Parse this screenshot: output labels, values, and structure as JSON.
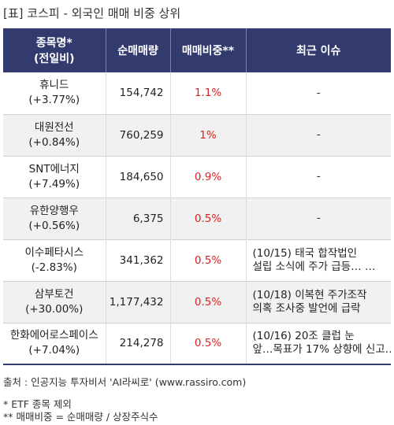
{
  "title": "[표] 코스피 - 외국인 매매 비중 상위",
  "headers": {
    "name_line1": "종목명*",
    "name_line2": "(전일비)",
    "amount": "순매매량",
    "ratio": "매매비중**",
    "issue": "최근 이슈"
  },
  "rows": [
    {
      "name": "휴니드",
      "change": "(+3.77%)",
      "amount": "154,742",
      "ratio": "1.1%",
      "issue": [
        "-"
      ]
    },
    {
      "name": "대원전선",
      "change": "(+0.84%)",
      "amount": "760,259",
      "ratio": "1%",
      "issue": [
        "-"
      ]
    },
    {
      "name": "SNT에너지",
      "change": "(+7.49%)",
      "amount": "184,650",
      "ratio": "0.9%",
      "issue": [
        "-"
      ]
    },
    {
      "name": "유한양행우",
      "change": "(+0.56%)",
      "amount": "6,375",
      "ratio": "0.5%",
      "issue": [
        "-"
      ]
    },
    {
      "name": "이수페타시스",
      "change": "(-2.83%)",
      "amount": "341,362",
      "ratio": "0.5%",
      "issue": [
        "(10/15) 태국 합작법인",
        "설립 소식에 주가 급등… …"
      ]
    },
    {
      "name": "삼부토건",
      "change": "(+30.00%)",
      "amount": "1,177,432",
      "ratio": "0.5%",
      "issue": [
        "(10/18) 이복현 주가조작",
        "의혹 조사중 발언에 급락"
      ]
    },
    {
      "name": "한화에어로스페이스",
      "change": "(+7.04%)",
      "amount": "214,278",
      "ratio": "0.5%",
      "issue": [
        "(10/16) 20조 클럽 눈",
        "앞…목표가 17% 상향에 신고…"
      ]
    }
  ],
  "source": "출처 : 인공지능 투자비서 'AI라씨로' (www.rassiro.com)",
  "notes": [
    "* ETF 종목 제외",
    "** 매매비중 = 순매매량 / 상장주식수"
  ]
}
